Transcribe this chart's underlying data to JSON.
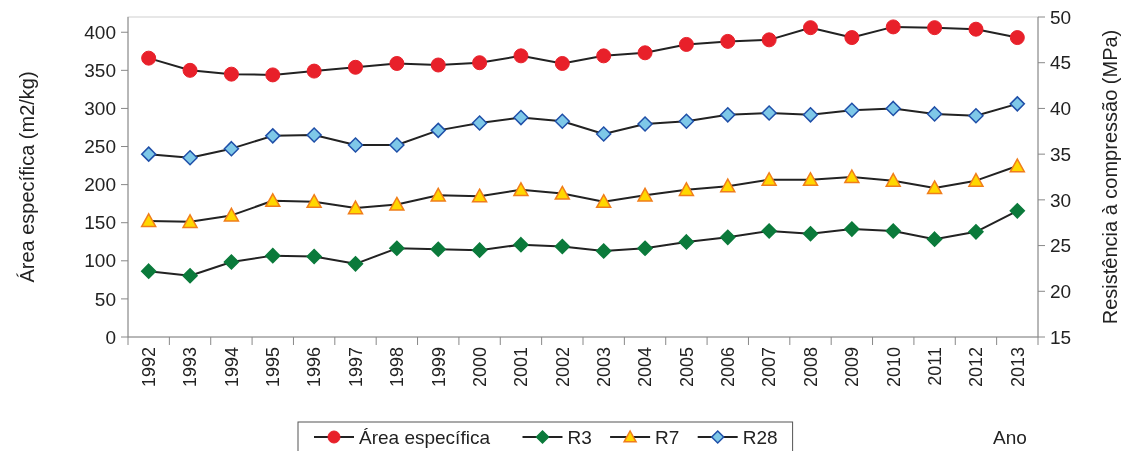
{
  "chart_data": {
    "type": "line",
    "xlabel": "Ano",
    "ylabel": "Área específica (m2/kg)",
    "y2label": "Resistência à compressão (MPa)",
    "categories": [
      "1992",
      "1993",
      "1994",
      "1995",
      "1996",
      "1997",
      "1998",
      "1999",
      "2000",
      "2001",
      "2002",
      "2003",
      "2004",
      "2005",
      "2006",
      "2007",
      "2008",
      "2009",
      "2010",
      "2011",
      "2012",
      "2013"
    ],
    "series": [
      {
        "name": "Área específica",
        "color": "#e8202a",
        "marker": "circle",
        "values": [
          366,
          350,
          345,
          344,
          349,
          354,
          359,
          357,
          360,
          369,
          359,
          369,
          373,
          384,
          388,
          390,
          406,
          393,
          407,
          406,
          404,
          393
        ]
      },
      {
        "name": "R3",
        "color": "#0b7a3b",
        "marker": "diamond",
        "axis": "y2",
        "values": [
          22.2,
          21.7,
          23.2,
          23.9,
          23.8,
          23.0,
          24.7,
          24.6,
          24.5,
          25.1,
          24.9,
          24.4,
          24.7,
          25.4,
          25.9,
          26.6,
          26.3,
          26.8,
          26.6,
          25.7,
          26.5,
          28.8
        ]
      },
      {
        "name": "R7",
        "color": "#ffd700",
        "marker": "triangle",
        "axis": "y2",
        "values": [
          27.7,
          27.6,
          28.3,
          29.9,
          29.8,
          29.1,
          29.5,
          30.5,
          30.4,
          31.1,
          30.7,
          29.8,
          30.5,
          31.1,
          31.5,
          32.2,
          32.2,
          32.5,
          32.1,
          31.3,
          32.1,
          33.7
        ]
      },
      {
        "name": "R28",
        "color": "#7ec8e8",
        "marker": "diamond",
        "axis": "y2",
        "values": [
          35.0,
          34.6,
          35.6,
          37.0,
          37.1,
          36.0,
          36.0,
          37.6,
          38.4,
          39.0,
          38.6,
          37.2,
          38.3,
          38.6,
          39.3,
          39.5,
          39.3,
          39.8,
          40.0,
          39.4,
          39.2,
          40.5
        ]
      }
    ],
    "ylim": [
      0,
      420
    ],
    "yticks": [
      0,
      50,
      100,
      150,
      200,
      250,
      300,
      350,
      400
    ],
    "y2lim": [
      15,
      50
    ],
    "y2ticks": [
      15,
      20,
      25,
      30,
      35,
      40,
      45,
      50
    ],
    "grid": false,
    "legend": "bottom",
    "line_style": "solid"
  }
}
